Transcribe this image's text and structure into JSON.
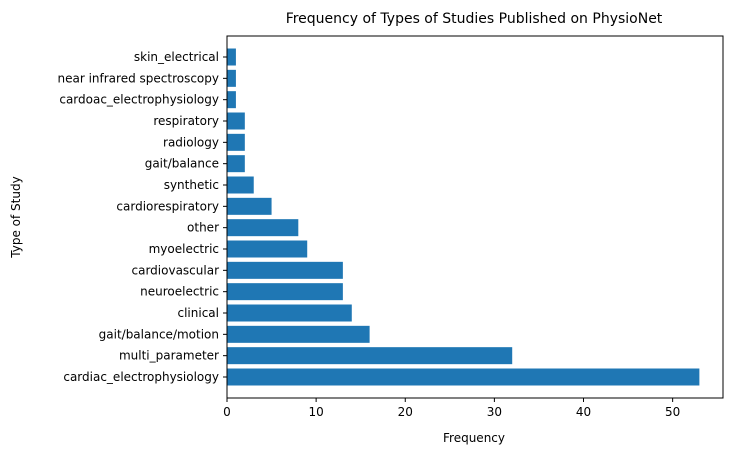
{
  "chart_data": {
    "type": "bar",
    "orientation": "horizontal",
    "title": "Frequency of Types of Studies Published on PhysioNet",
    "xlabel": "Frequency",
    "ylabel": "Type of Study",
    "categories": [
      "cardiac_electrophysiology",
      "multi_parameter",
      "gait/balance/motion",
      "clinical",
      "neuroelectric",
      "cardiovascular",
      "myoelectric",
      "other",
      "cardiorespiratory",
      "synthetic",
      "gait/balance",
      "radiology",
      "respiratory",
      "cardoac_electrophysiology",
      "near infrared spectroscopy",
      "skin_electrical"
    ],
    "values": [
      53,
      32,
      16,
      14,
      13,
      13,
      9,
      8,
      5,
      3,
      2,
      2,
      2,
      1,
      1,
      1
    ],
    "xlim": [
      0,
      55.65
    ],
    "xticks": [
      0,
      10,
      20,
      30,
      40,
      50
    ],
    "grid": false,
    "legend": "none",
    "bar_color": "#1f77b4"
  }
}
